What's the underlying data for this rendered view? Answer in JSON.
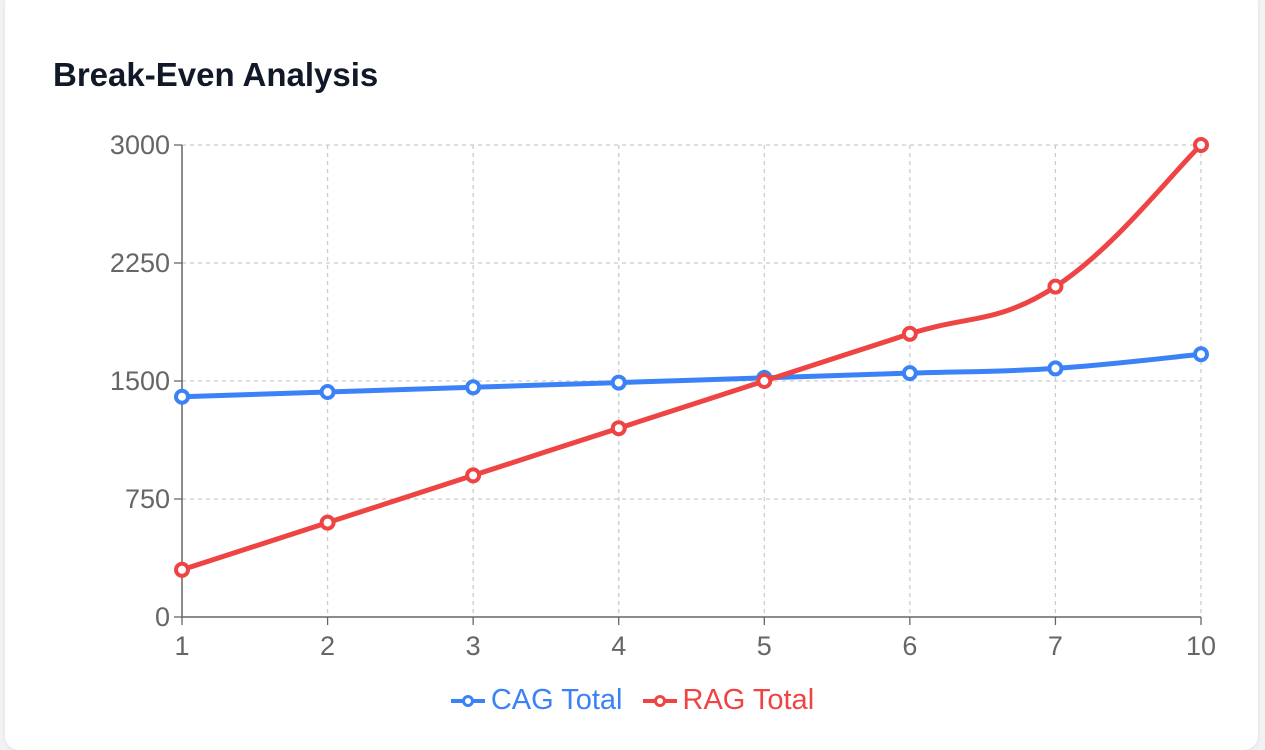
{
  "title": "Break-Even Analysis",
  "chart_data": {
    "type": "line",
    "title": "Break-Even Analysis",
    "categories": [
      "1",
      "2",
      "3",
      "4",
      "5",
      "6",
      "7",
      "10"
    ],
    "ylim": [
      0,
      3000
    ],
    "yticks": [
      0,
      750,
      1500,
      2250,
      3000
    ],
    "grid": true,
    "legend_position": "bottom",
    "series": [
      {
        "name": "CAG Total",
        "color": "#3b82f6",
        "values": [
          1400,
          1430,
          1460,
          1490,
          1520,
          1550,
          1580,
          1670
        ]
      },
      {
        "name": "RAG Total",
        "color": "#ef4444",
        "values": [
          300,
          600,
          900,
          1200,
          1500,
          1800,
          2100,
          3000
        ]
      }
    ]
  }
}
